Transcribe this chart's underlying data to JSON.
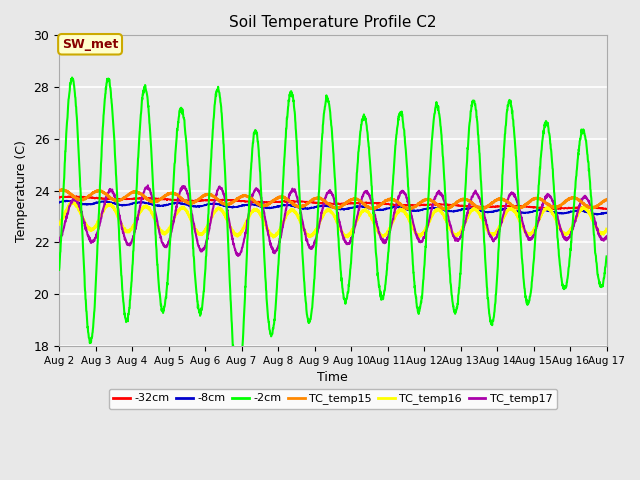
{
  "title": "Soil Temperature Profile C2",
  "xlabel": "Time",
  "ylabel": "Temperature (C)",
  "ylim": [
    18,
    30
  ],
  "annotation_text": "SW_met",
  "annotation_bg": "#FFFFCC",
  "annotation_border": "#CCAA00",
  "annotation_text_color": "#880000",
  "fig_facecolor": "#E8E8E8",
  "ax_facecolor": "#E8E8E8",
  "grid_color": "#FFFFFF",
  "series": {
    "-32cm": {
      "color": "#FF0000",
      "linewidth": 1.2,
      "zorder": 3
    },
    "-8cm": {
      "color": "#0000CC",
      "linewidth": 1.2,
      "zorder": 3
    },
    "-2cm": {
      "color": "#00FF00",
      "linewidth": 1.5,
      "zorder": 5
    },
    "TC_temp15": {
      "color": "#FF8800",
      "linewidth": 2.0,
      "zorder": 4
    },
    "TC_temp16": {
      "color": "#FFFF00",
      "linewidth": 2.0,
      "zorder": 4
    },
    "TC_temp17": {
      "color": "#AA00AA",
      "linewidth": 1.5,
      "zorder": 4
    }
  },
  "xtick_labels": [
    "Aug 2",
    "Aug 3",
    "Aug 4",
    "Aug 5",
    "Aug 6",
    "Aug 7",
    "Aug 8",
    "Aug 9",
    "Aug 10",
    "Aug 11",
    "Aug 12",
    "Aug 13",
    "Aug 14",
    "Aug 15",
    "Aug 16",
    "Aug 17"
  ],
  "ytick_labels": [
    18,
    20,
    22,
    24,
    26,
    28,
    30
  ],
  "num_days": 15,
  "pts_per_day": 144
}
